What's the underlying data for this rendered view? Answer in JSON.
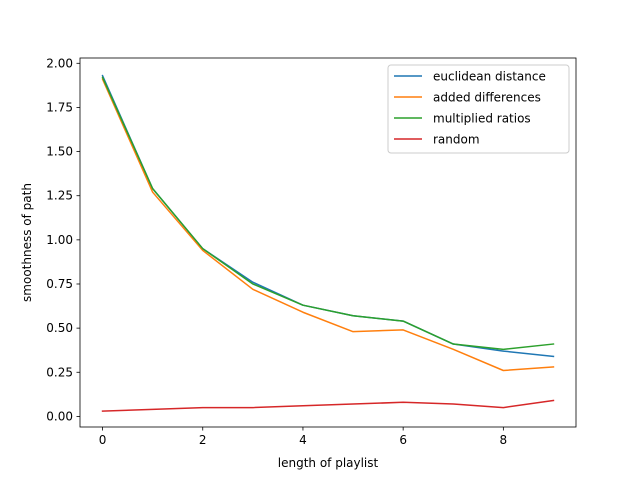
{
  "chart_data": {
    "type": "line",
    "title": "",
    "xlabel": "length of playlist",
    "ylabel": "smoothness of path",
    "xlim": [
      -0.45,
      9.45
    ],
    "ylim": [
      -0.06,
      2.03
    ],
    "xticks": [
      0,
      2,
      4,
      6,
      8
    ],
    "xtick_labels": [
      "0",
      "2",
      "4",
      "6",
      "8"
    ],
    "yticks": [
      0.0,
      0.25,
      0.5,
      0.75,
      1.0,
      1.25,
      1.5,
      1.75,
      2.0
    ],
    "ytick_labels": [
      "0.00",
      "0.25",
      "0.50",
      "0.75",
      "1.00",
      "1.25",
      "1.50",
      "1.75",
      "2.00"
    ],
    "grid": false,
    "legend_position": "top-right",
    "x": [
      0,
      1,
      2,
      3,
      4,
      5,
      6,
      7,
      8,
      9
    ],
    "series": [
      {
        "name": "euclidean distance",
        "color": "#1f77b4",
        "values": [
          1.93,
          1.29,
          0.95,
          0.76,
          0.63,
          0.57,
          0.54,
          0.41,
          0.37,
          0.34
        ]
      },
      {
        "name": "added differences",
        "color": "#ff7f0e",
        "values": [
          1.91,
          1.27,
          0.94,
          0.72,
          0.59,
          0.48,
          0.49,
          0.38,
          0.26,
          0.28
        ]
      },
      {
        "name": "multiplied ratios",
        "color": "#2ca02c",
        "values": [
          1.92,
          1.29,
          0.95,
          0.75,
          0.63,
          0.57,
          0.54,
          0.41,
          0.38,
          0.41
        ]
      },
      {
        "name": "random",
        "color": "#d62728",
        "values": [
          0.03,
          0.04,
          0.05,
          0.05,
          0.06,
          0.07,
          0.08,
          0.07,
          0.05,
          0.09
        ]
      }
    ]
  }
}
